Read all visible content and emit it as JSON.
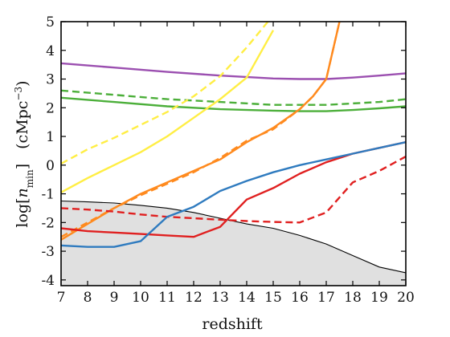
{
  "chart_data": {
    "type": "line",
    "xlabel": "redshift",
    "ylabel": "log[n_min]   (cMpc^-3)",
    "ylabel_parts": {
      "log": "log",
      "bracket_open": "[",
      "n": "n",
      "sub": "min",
      "bracket_close": "]",
      "units_open": "(cMpc",
      "units_exp": "−3",
      "units_close": ")"
    },
    "xlim": [
      7,
      20
    ],
    "ylim": [
      -4.2,
      5
    ],
    "xticks": [
      7,
      8,
      9,
      10,
      11,
      12,
      13,
      14,
      15,
      16,
      17,
      18,
      19,
      20
    ],
    "xtick_labels": [
      "7",
      "8",
      "9",
      "10",
      "11",
      "12",
      "13",
      "14",
      "15",
      "16",
      "17",
      "18",
      "19",
      "20"
    ],
    "yticks": [
      -4,
      -3,
      -2,
      -1,
      0,
      1,
      2,
      3,
      4,
      5
    ],
    "ytick_labels": [
      "-4",
      "-3",
      "-2",
      "-1",
      "0",
      "1",
      "2",
      "3",
      "4",
      "5"
    ],
    "grid": false,
    "shaded_region": {
      "fill": "#e0e0e0",
      "edge": "#000000",
      "x": [
        7,
        8,
        9,
        10,
        11,
        12,
        13,
        14,
        15,
        16,
        17,
        18,
        19,
        20
      ],
      "y": [
        -1.25,
        -1.28,
        -1.32,
        -1.4,
        -1.5,
        -1.65,
        -1.85,
        -2.05,
        -2.2,
        -2.45,
        -2.75,
        -3.15,
        -3.55,
        -3.75
      ]
    },
    "series": [
      {
        "color": "#9b4fb0",
        "dash": "solid",
        "x": [
          7,
          9,
          11,
          13,
          15,
          16,
          17,
          18,
          19,
          20
        ],
        "y": [
          3.55,
          3.4,
          3.25,
          3.12,
          3.02,
          3.0,
          3.0,
          3.05,
          3.12,
          3.2
        ]
      },
      {
        "color": "#4caf3a",
        "dash": "dashed",
        "x": [
          7,
          9,
          11,
          13,
          15,
          16,
          17,
          18,
          19,
          20
        ],
        "y": [
          2.6,
          2.45,
          2.3,
          2.2,
          2.1,
          2.1,
          2.1,
          2.15,
          2.2,
          2.3
        ]
      },
      {
        "color": "#4caf3a",
        "dash": "solid",
        "x": [
          7,
          9,
          11,
          13,
          15,
          16,
          17,
          18,
          19,
          20
        ],
        "y": [
          2.35,
          2.2,
          2.05,
          1.95,
          1.9,
          1.88,
          1.88,
          1.92,
          1.98,
          2.05
        ]
      },
      {
        "color": "#ffee44",
        "dash": "dashed",
        "x": [
          7,
          8,
          9,
          10,
          11,
          12,
          13,
          14,
          14.8
        ],
        "y": [
          0.05,
          0.55,
          0.95,
          1.4,
          1.85,
          2.4,
          3.1,
          4.1,
          5.0
        ]
      },
      {
        "color": "#ffee44",
        "dash": "solid",
        "x": [
          7,
          8,
          9,
          10,
          11,
          12,
          13,
          14,
          15
        ],
        "y": [
          -0.95,
          -0.45,
          0.0,
          0.45,
          1.0,
          1.65,
          2.3,
          3.05,
          4.7
        ]
      },
      {
        "color": "#ff8a1e",
        "dash": "dashed",
        "x": [
          7,
          8,
          9,
          10,
          11,
          12,
          13,
          14,
          15,
          16,
          16.5,
          17,
          17.5
        ],
        "y": [
          -2.5,
          -2.0,
          -1.5,
          -1.05,
          -0.65,
          -0.25,
          0.25,
          0.85,
          1.25,
          1.95,
          2.4,
          3.0,
          5.0
        ]
      },
      {
        "color": "#ff8a1e",
        "dash": "solid",
        "x": [
          7,
          8,
          9,
          10,
          11,
          12,
          13,
          14,
          15,
          16,
          16.5,
          17,
          17.5
        ],
        "y": [
          -2.6,
          -2.05,
          -1.5,
          -1.0,
          -0.6,
          -0.2,
          0.2,
          0.8,
          1.3,
          1.95,
          2.4,
          3.0,
          5.0
        ]
      },
      {
        "color": "#e02020",
        "dash": "dashed",
        "x": [
          7,
          8,
          9,
          10,
          11,
          12,
          13,
          14,
          15,
          16,
          17,
          18,
          19,
          20
        ],
        "y": [
          -1.5,
          -1.55,
          -1.62,
          -1.72,
          -1.8,
          -1.85,
          -1.9,
          -1.95,
          -1.98,
          -2.0,
          -1.65,
          -0.6,
          -0.2,
          0.3
        ]
      },
      {
        "color": "#e02020",
        "dash": "solid",
        "x": [
          7,
          8,
          9,
          10,
          11,
          12,
          13,
          14,
          15,
          16,
          17,
          18,
          19,
          20
        ],
        "y": [
          -2.2,
          -2.3,
          -2.35,
          -2.4,
          -2.45,
          -2.5,
          -2.15,
          -1.2,
          -0.8,
          -0.3,
          0.1,
          0.4,
          0.6,
          0.8
        ]
      },
      {
        "color": "#2f7bbf",
        "dash": "solid",
        "x": [
          7,
          8,
          9,
          10,
          11,
          12,
          13,
          14,
          15,
          16,
          17,
          18,
          19,
          20
        ],
        "y": [
          -2.8,
          -2.85,
          -2.85,
          -2.65,
          -1.8,
          -1.45,
          -0.9,
          -0.55,
          -0.25,
          0.0,
          0.2,
          0.4,
          0.6,
          0.8
        ]
      }
    ]
  }
}
